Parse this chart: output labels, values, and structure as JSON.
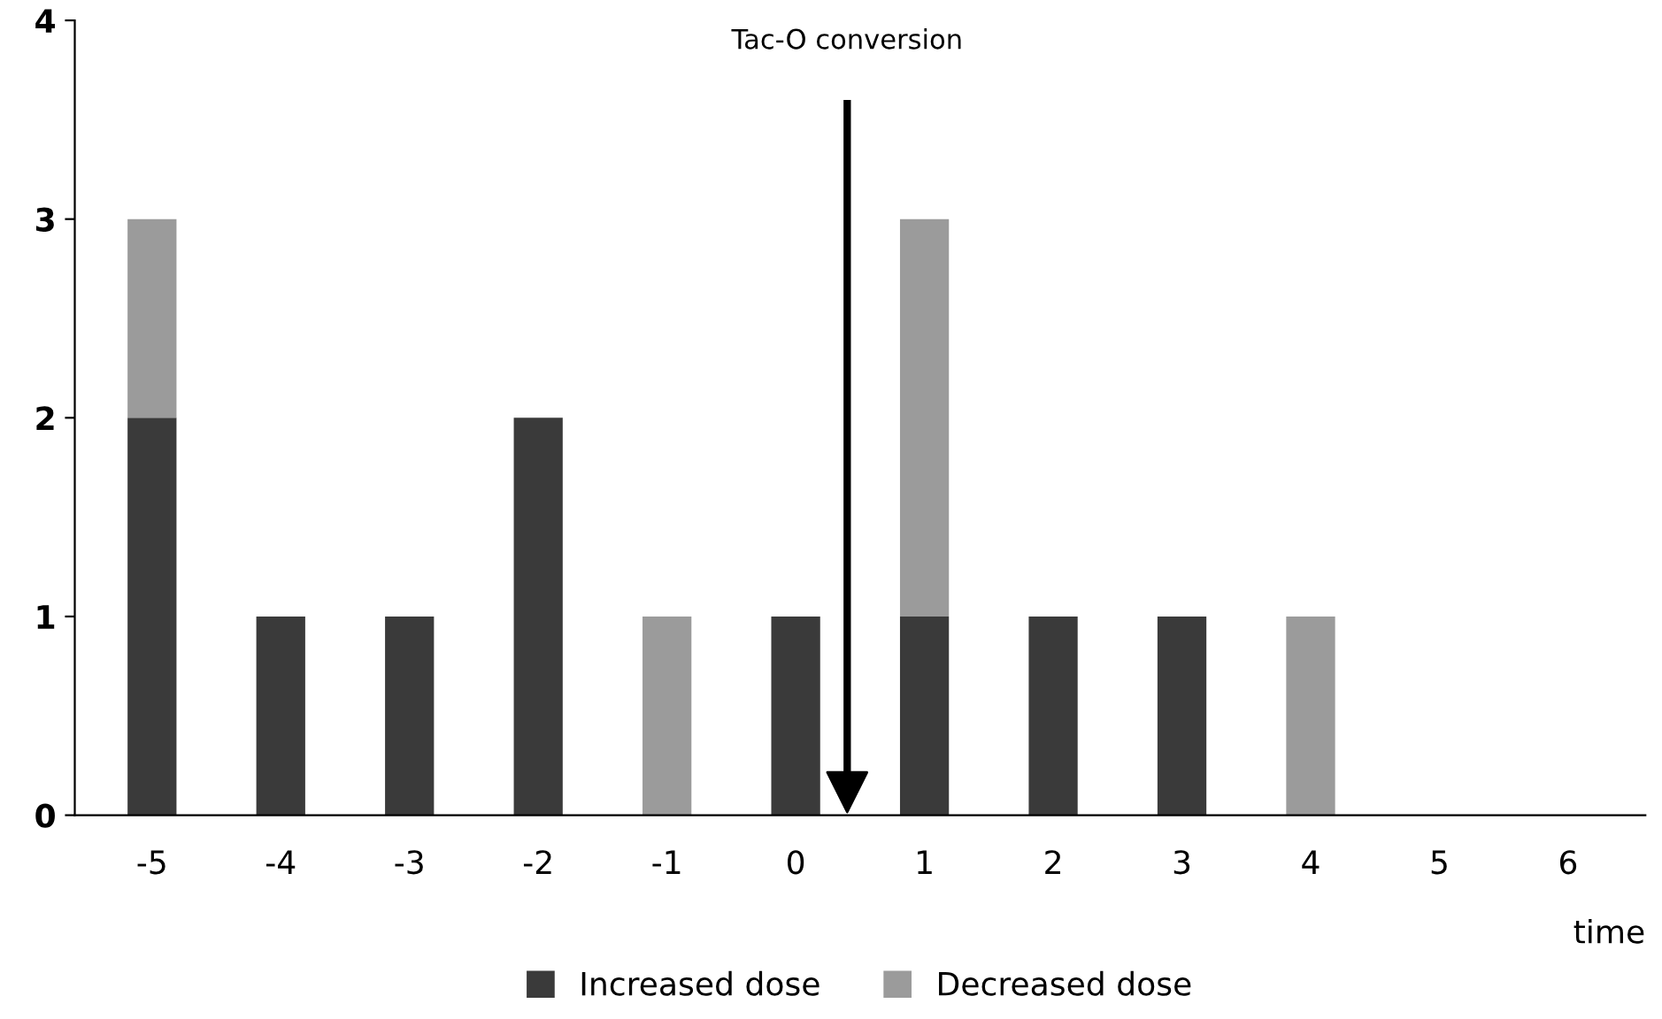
{
  "chart_data": {
    "type": "bar",
    "stacked": true,
    "xlabel": "time",
    "x": [
      -5,
      -4,
      -3,
      -2,
      -1,
      0,
      1,
      2,
      3,
      4,
      5,
      6
    ],
    "series": [
      {
        "name": "Increased dose",
        "color": "#3a3a3a",
        "values": [
          2,
          1,
          1,
          2,
          0,
          1,
          1,
          1,
          1,
          0,
          0,
          0
        ]
      },
      {
        "name": "Decreased dose",
        "color": "#9b9b9b",
        "values": [
          1,
          0,
          0,
          0,
          1,
          0,
          2,
          0,
          0,
          1,
          0,
          0
        ]
      }
    ],
    "xlim": [
      -5.6,
      6.6
    ],
    "xticks": [
      -5,
      -4,
      -3,
      -2,
      -1,
      0,
      1,
      2,
      3,
      4,
      5,
      6
    ],
    "ylim": [
      0,
      4
    ],
    "yticks": [
      0,
      1,
      2,
      3,
      4
    ],
    "grid": false,
    "legend": "bottom",
    "ref_lines": [
      {
        "axis": "x",
        "value": 0.4,
        "label": "Tac-O conversion",
        "color": "#000000"
      }
    ]
  }
}
